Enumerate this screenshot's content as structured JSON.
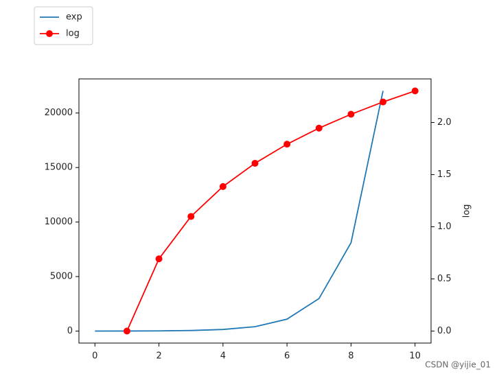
{
  "chart_data": {
    "type": "line",
    "y2label": "log",
    "xlim": [
      -0.5,
      10.5
    ],
    "xticks": [
      0,
      2,
      4,
      6,
      8,
      10
    ],
    "ylim": [
      -1098,
      23127
    ],
    "yticks": [
      0,
      5000,
      10000,
      15000,
      20000
    ],
    "y2lim": [
      -0.115,
      2.418
    ],
    "y2ticks": [
      {
        "value": 0,
        "label": "0.0"
      },
      {
        "value": 0.5,
        "label": "0.5"
      },
      {
        "value": 1,
        "label": "1.0"
      },
      {
        "value": 1.5,
        "label": "1.5"
      },
      {
        "value": 2,
        "label": "2.0"
      }
    ],
    "legend": "upper left",
    "series": [
      {
        "name": "exp",
        "color": "#1f77b4",
        "x": [
          0,
          1,
          2,
          3,
          4,
          5,
          6,
          7,
          8,
          9
        ],
        "values": [
          3,
          7,
          20,
          55,
          148,
          403,
          1097,
          2981,
          8103,
          22026
        ]
      },
      {
        "name": "log",
        "color": "#ff0000",
        "marker": "o",
        "axis": "y2",
        "x": [
          1,
          2,
          3,
          4,
          5,
          6,
          7,
          8,
          9,
          10
        ],
        "values": [
          0,
          0.693,
          1.099,
          1.386,
          1.609,
          1.792,
          1.946,
          2.079,
          2.197,
          2.303
        ]
      }
    ],
    "watermark": "CSDN @yijie_01"
  }
}
